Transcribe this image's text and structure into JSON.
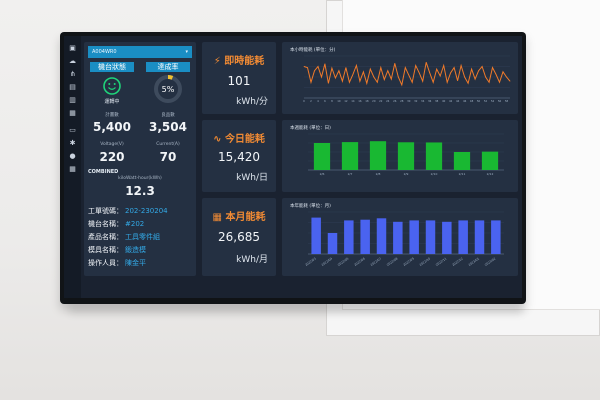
{
  "dashboard": {
    "machine_select": "A004WR0",
    "machine_status_label": "機台狀態",
    "machine_status_value": "運轉中",
    "achievement_label": "達成率",
    "achievement_value": "5%",
    "achievement_fraction": 0.05,
    "planned_label": "計畫數",
    "planned_value": "5,400",
    "good_label": "良品數",
    "good_value": "3,504",
    "voltage_label": "Voltage(V)",
    "voltage_value": "220",
    "current_label": "Current(A)",
    "current_value": "70",
    "combined_label": "COMBINED",
    "kwh_label": "kiloWatt-hour(kWh)",
    "kwh_value": "12.3",
    "work_order_label": "工單號碼：",
    "work_order_value": "202-230204",
    "machine_name_label": "機台名稱：",
    "machine_name_value": "#202",
    "product_label": "產品名稱：",
    "product_value": "工具零件組",
    "mold_label": "模具名稱：",
    "mold_value": "鍛造模",
    "operator_label": "操作人員：",
    "operator_value": "陳金平"
  },
  "kpis": {
    "instant_title": "即時能耗",
    "instant_value": "101",
    "instant_unit": "kWh/分",
    "today_title": "今日能耗",
    "today_value": "15,420",
    "today_unit": "kWh/日",
    "month_title": "本月能耗",
    "month_value": "26,685",
    "month_unit": "kWh/月"
  },
  "colors": {
    "accent": "#f08a34",
    "select": "#1a8ec4",
    "line": "#f07a2a",
    "bar_green": "#19b832",
    "bar_blue": "#4a63f0"
  },
  "chart_data": [
    {
      "type": "line",
      "title": "本小時能耗 (單位：分)",
      "x": [
        0,
        1,
        2,
        3,
        4,
        5,
        6,
        7,
        8,
        9,
        10,
        11,
        12,
        13,
        14,
        15,
        16,
        17,
        18,
        19,
        20,
        21,
        22,
        23,
        24,
        25,
        26,
        27,
        28,
        29,
        30,
        31,
        32,
        33,
        34,
        35,
        36,
        37,
        38,
        39,
        40,
        41,
        42,
        43,
        44,
        45,
        46,
        47,
        48,
        49,
        50,
        51,
        52,
        53,
        54,
        55,
        56,
        57,
        58,
        59
      ],
      "values": [
        60,
        58,
        30,
        52,
        60,
        40,
        65,
        28,
        57,
        38,
        52,
        32,
        58,
        30,
        45,
        62,
        32,
        50,
        28,
        55,
        40,
        30,
        58,
        35,
        52,
        36,
        66,
        40,
        25,
        58,
        44,
        30,
        62,
        48,
        32,
        68,
        48,
        30,
        55,
        42,
        62,
        30,
        48,
        58,
        33,
        62,
        40,
        28,
        55,
        36,
        52,
        60,
        40,
        30,
        58,
        45,
        30,
        50,
        40,
        32
      ],
      "ylim": [
        0,
        80
      ],
      "legend": "bottom"
    },
    {
      "type": "bar",
      "title": "本週能耗 (單位：日)",
      "categories": [
        "2/6",
        "2/7",
        "2/8",
        "2/9",
        "2/10",
        "2/11",
        "2/12"
      ],
      "values": [
        15000,
        15500,
        16000,
        15400,
        15300,
        10000,
        10200
      ],
      "ylim": [
        0,
        20000
      ],
      "legend": "bottom"
    },
    {
      "type": "bar",
      "title": "本年能耗 (單位：月)",
      "categories": [
        "2022/03",
        "2022/04",
        "2022/05",
        "2022/06",
        "2022/07",
        "2022/08",
        "2022/09",
        "2022/10",
        "2022/11",
        "2022/12",
        "2023/01",
        "2023/02"
      ],
      "values": [
        26000,
        15000,
        24000,
        24500,
        25500,
        23000,
        24000,
        24000,
        23000,
        24000,
        24000,
        24000
      ],
      "ylim": [
        0,
        30000
      ],
      "legend": "bottom"
    }
  ]
}
